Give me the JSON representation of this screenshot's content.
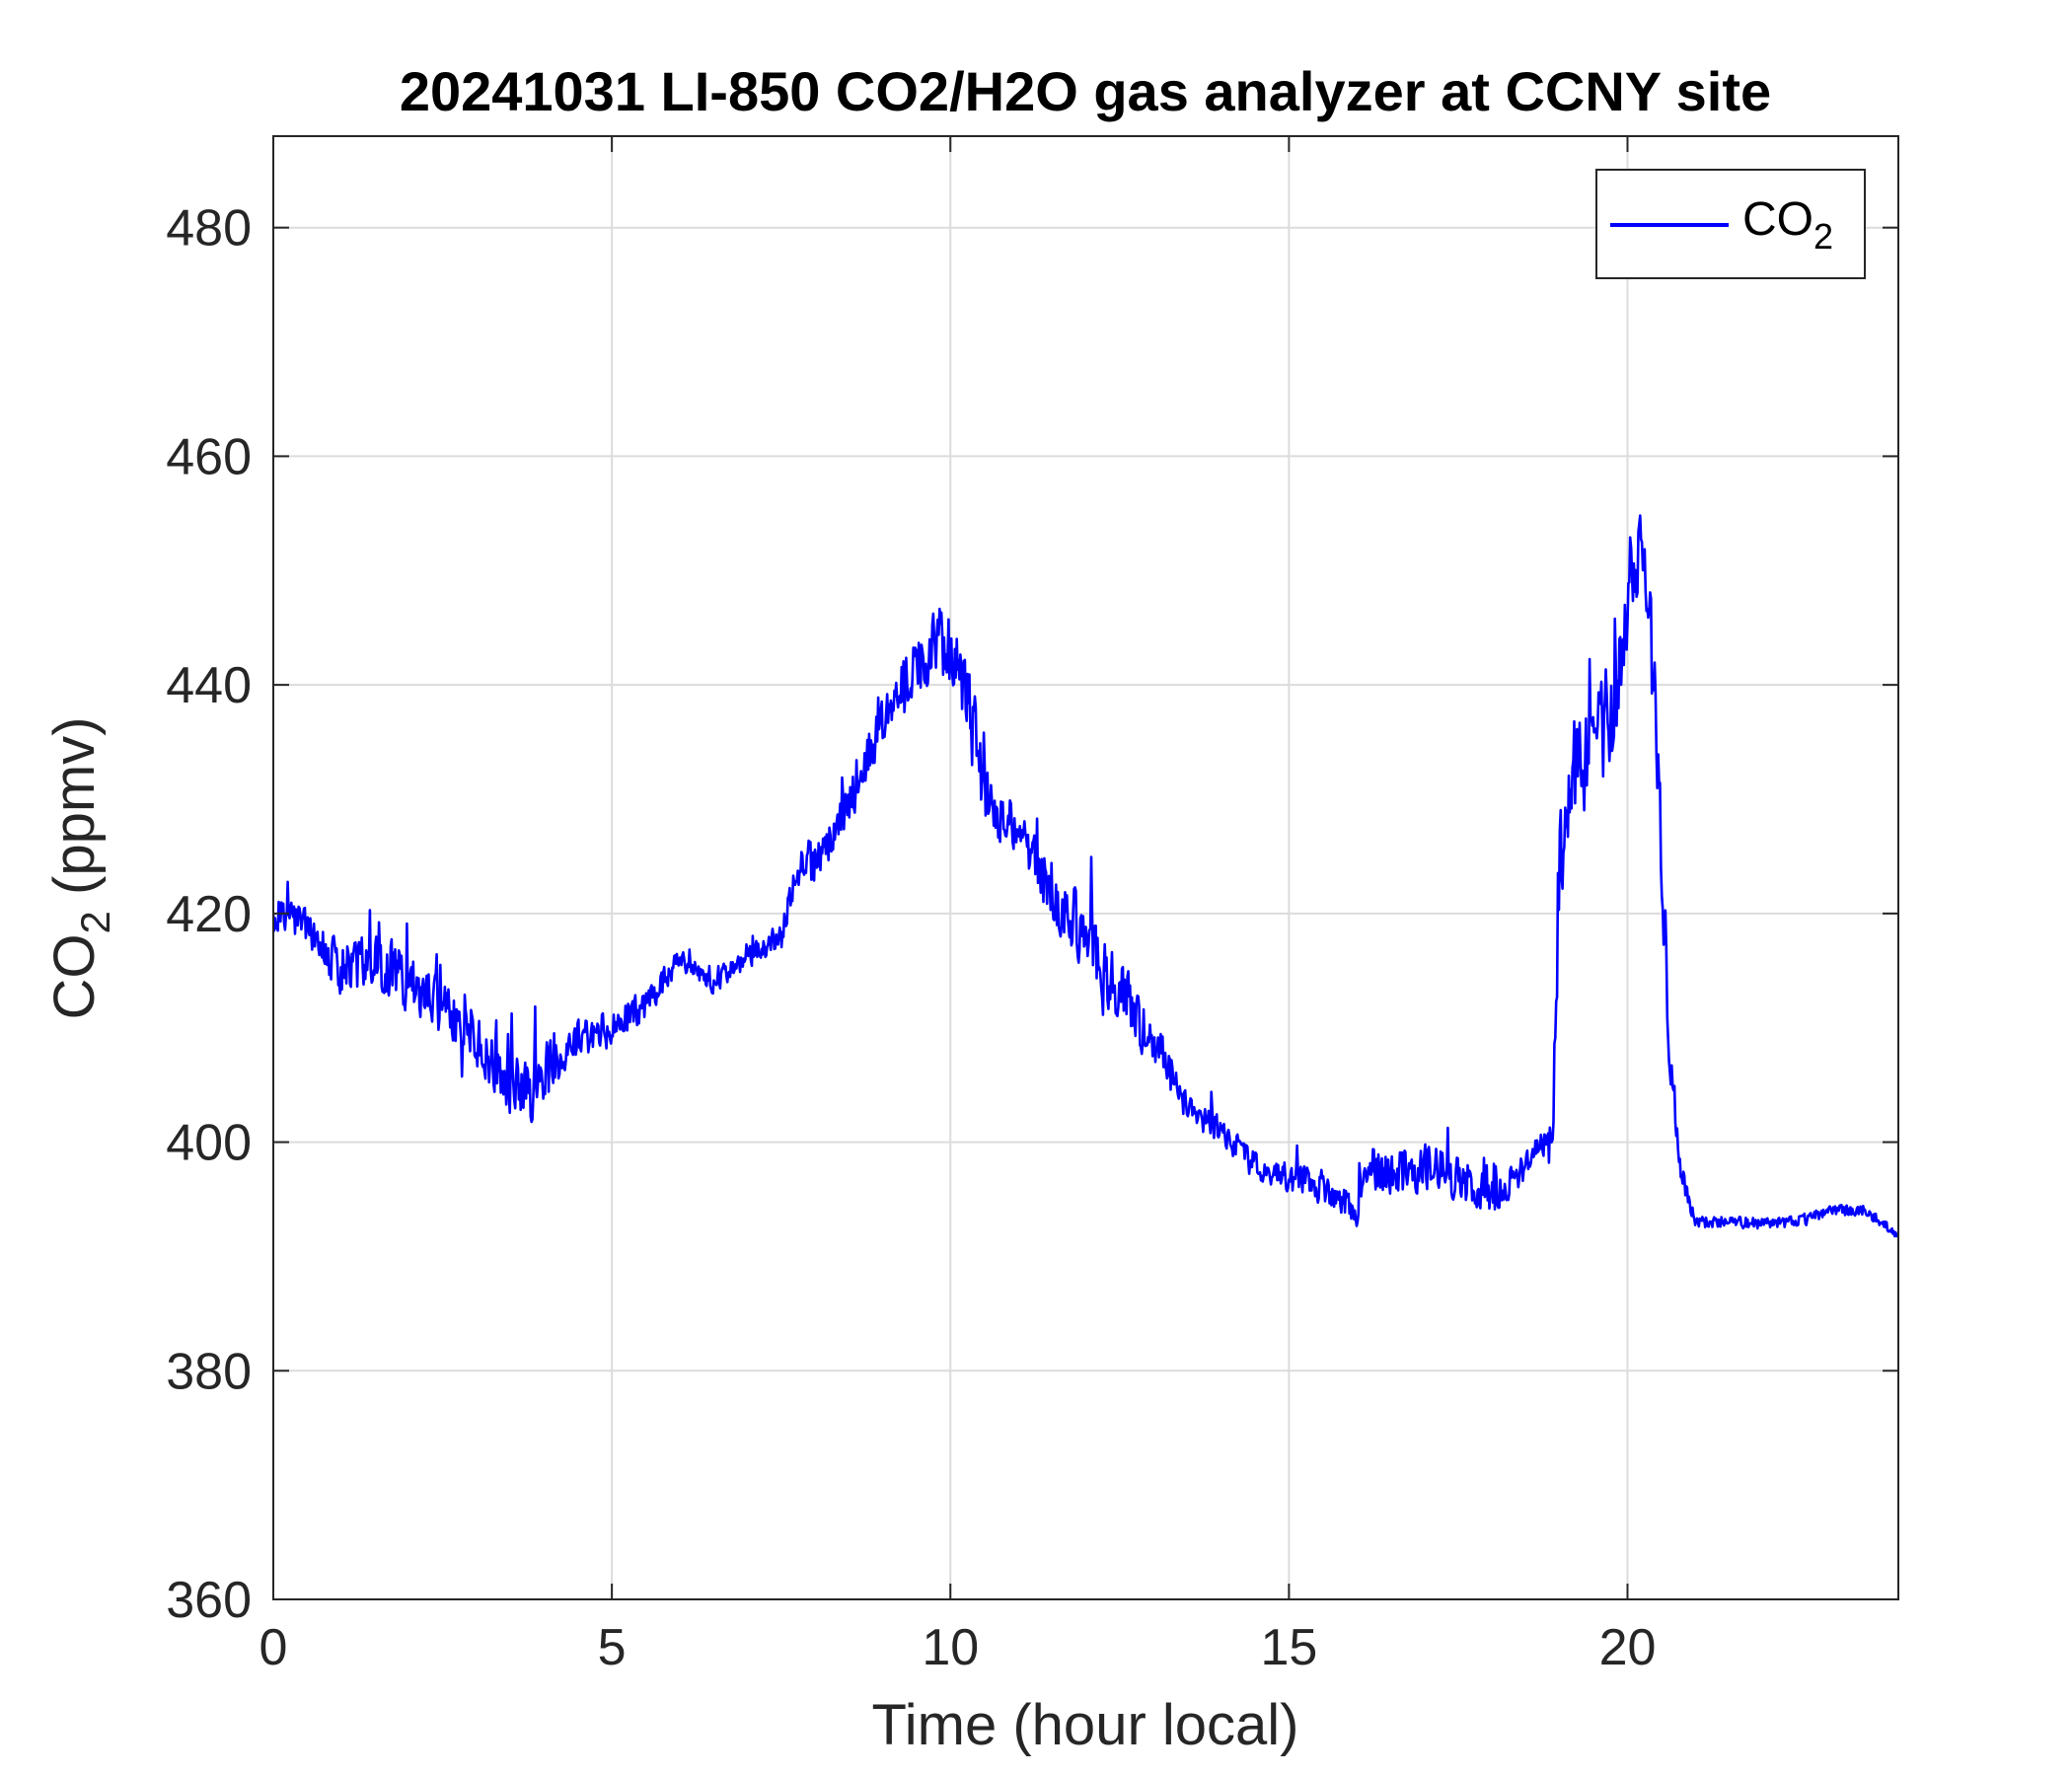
{
  "chart_data": {
    "type": "line",
    "title": "20241031 LI-850 CO2/H2O gas analyzer at CCNY site",
    "xlabel": {
      "main": "Time (hour local)"
    },
    "ylabel": {
      "pre": "CO",
      "sub": "2",
      "post": " (ppmv)"
    },
    "xlim": [
      0,
      24
    ],
    "ylim": [
      360,
      488
    ],
    "xticks": [
      0,
      5,
      10,
      15,
      20
    ],
    "xtick_labels": [
      "0",
      "5",
      "10",
      "15",
      "20"
    ],
    "yticks": [
      360,
      380,
      400,
      420,
      440,
      460,
      480
    ],
    "ytick_labels": [
      "360",
      "380",
      "400",
      "420",
      "440",
      "460",
      "480"
    ],
    "grid": true,
    "legend": {
      "placement": "top-right",
      "entry_main": "CO",
      "entry_sub": "2"
    },
    "series": [
      {
        "name": "CO2",
        "color": "#0000ff",
        "x": [
          0,
          0.3,
          0.6,
          1.0,
          1.5,
          2.0,
          2.5,
          3.0,
          3.5,
          3.8,
          4.0,
          4.5,
          5.0,
          5.5,
          6.0,
          6.5,
          7.0,
          7.5,
          7.8,
          8.0,
          8.5,
          9.0,
          9.5,
          9.8,
          10.0,
          10.3,
          10.5,
          11.0,
          11.5,
          12.0,
          12.5,
          13.0,
          13.5,
          14.0,
          14.5,
          15.0,
          15.5,
          16.0,
          16.2,
          16.5,
          17.0,
          17.5,
          18.0,
          18.5,
          18.9,
          19.0,
          19.2,
          19.5,
          19.8,
          20.0,
          20.2,
          20.4,
          20.6,
          20.8,
          21.0,
          21.5,
          22.0,
          22.5,
          23.0,
          23.5,
          24.0
        ],
        "y": [
          420,
          420,
          418,
          415,
          416,
          414,
          412,
          409,
          405,
          404,
          406,
          409,
          410,
          412,
          416,
          414,
          416,
          418,
          425,
          424,
          430,
          437,
          442,
          444,
          443,
          438,
          430,
          427,
          422,
          418,
          413,
          409,
          403,
          401,
          398,
          397,
          396,
          394,
          398,
          397,
          398,
          397,
          395,
          398,
          401,
          425,
          432,
          434,
          438,
          446,
          452,
          440,
          410,
          397,
          393,
          393,
          393,
          393,
          394,
          394,
          392
        ],
        "y_env": [
          3.0,
          2.0,
          2.5,
          3.5,
          4.0,
          4.0,
          4.0,
          4.0,
          4.0,
          4.5,
          4.0,
          3.0,
          2.5,
          2.0,
          1.5,
          1.5,
          1.5,
          2.0,
          3.0,
          3.0,
          3.5,
          4.0,
          5.0,
          5.0,
          5.0,
          5.0,
          4.5,
          3.0,
          4.5,
          4.5,
          4.5,
          3.5,
          2.0,
          1.8,
          1.8,
          2.2,
          2.2,
          2.2,
          3.0,
          3.0,
          3.5,
          3.0,
          2.5,
          2.0,
          2.0,
          7.0,
          8.0,
          8.0,
          8.0,
          6.0,
          5.0,
          7.0,
          4.0,
          2.0,
          0.8,
          0.8,
          0.8,
          0.8,
          0.8,
          0.8,
          0.8
        ]
      }
    ]
  }
}
